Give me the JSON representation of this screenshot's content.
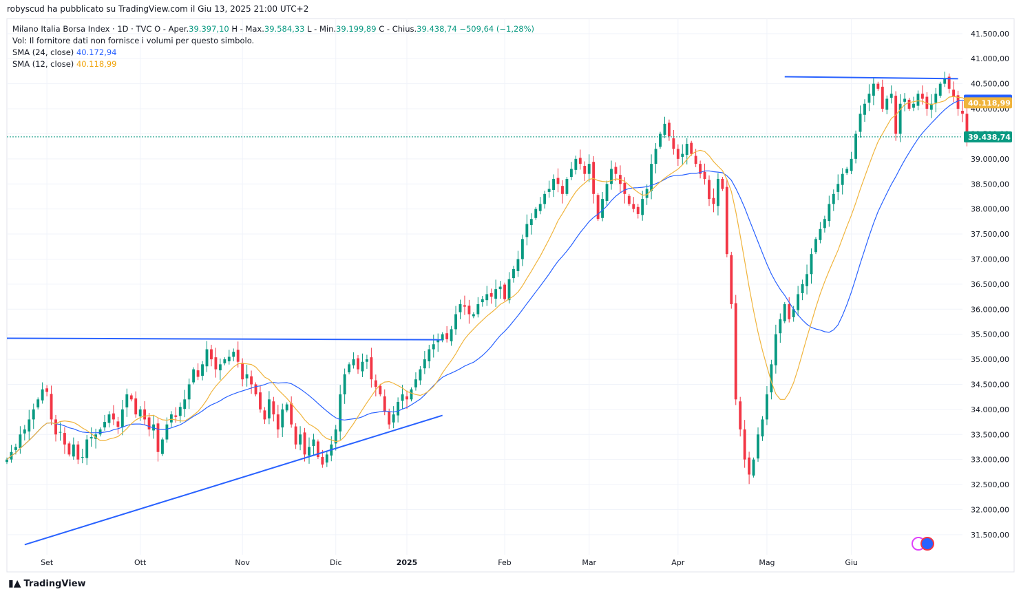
{
  "header": {
    "credit": "robyscud ha pubblicato su TradingView.com il Giu 13, 2025 21:00 UTC+2"
  },
  "legend": {
    "symbol": "Milano Italia Borsa Index · 1D · TVC",
    "open_label": "O - Aper.",
    "open_value": "39.397,10",
    "high_label": "H - Max.",
    "high_value": "39.584,33",
    "low_label": "L - Min.",
    "low_value": "39.199,89",
    "close_label": "C - Chius.",
    "close_value": "39.438,74",
    "change_value": "−509,64 (−1,28%)",
    "volume_note": "Vol: Il fornitore dati non fornisce i volumi per questo simbolo.",
    "sma24_label": "SMA (24, close)",
    "sma24_value": "40.172,94",
    "sma12_label": "SMA (12, close)",
    "sma12_value": "40.118,99"
  },
  "footer": {
    "brand": "TradingView"
  },
  "colors": {
    "up": "#089981",
    "down": "#f23645",
    "sma24": "#2962ff",
    "sma12": "#f0b43c",
    "trendline": "#2962ff",
    "last_price": "#089981",
    "grid": "#f0f3fa"
  },
  "chart_data": {
    "type": "candlestick",
    "symbol": "Milano Italia Borsa Index",
    "interval": "1D",
    "y_ticks": [
      31500,
      32000,
      32500,
      33000,
      33500,
      34000,
      34500,
      35000,
      35500,
      36000,
      36500,
      37000,
      37500,
      38000,
      38500,
      39000,
      39500,
      40000,
      40500,
      41000,
      41500
    ],
    "y_tick_labels": [
      "31.500,00",
      "32.000,00",
      "32.500,00",
      "33.000,00",
      "33.500,00",
      "34.000,00",
      "34.500,00",
      "35.000,00",
      "35.500,00",
      "36.000,00",
      "36.500,00",
      "37.000,00",
      "37.500,00",
      "38.000,00",
      "38.500,00",
      "39.000,00",
      "39.500,00",
      "40.000,00",
      "40.500,00",
      "41.000,00",
      "41.500,00"
    ],
    "ylim": [
      31100,
      41800
    ],
    "x_labels": [
      "Set",
      "Ott",
      "Nov",
      "Dic",
      "2025",
      "Feb",
      "Mar",
      "Apr",
      "Mag",
      "Giu"
    ],
    "x_label_bar_index": [
      9,
      30,
      53,
      74,
      90,
      112,
      131,
      151,
      171,
      190
    ],
    "x_range": [
      0,
      215
    ],
    "last_price": 39438.74,
    "last_price_label": "39.438,74",
    "sma24_last": 40172.94,
    "sma24_label": "40.172,94",
    "sma12_last": 40118.99,
    "sma12_label": "40.118,99",
    "closes": [
      33000,
      33150,
      33250,
      33500,
      33600,
      33800,
      34000,
      34200,
      34400,
      34350,
      33800,
      33500,
      33550,
      33300,
      33100,
      33300,
      33000,
      33050,
      33400,
      33450,
      33500,
      33600,
      33750,
      33900,
      33800,
      33650,
      34000,
      34300,
      34200,
      33900,
      34000,
      33800,
      33600,
      33700,
      33150,
      33400,
      33700,
      33900,
      33850,
      34050,
      34200,
      34500,
      34800,
      34650,
      34900,
      35200,
      35000,
      34800,
      34900,
      35000,
      35050,
      35150,
      34950,
      34600,
      34700,
      34500,
      34300,
      34000,
      33800,
      34200,
      33900,
      33600,
      34000,
      34100,
      33700,
      33300,
      33500,
      33100,
      33250,
      33400,
      33050,
      32900,
      33100,
      33300,
      33600,
      34300,
      34700,
      34900,
      35000,
      34800,
      34950,
      35000,
      34600,
      34450,
      34300,
      33950,
      33700,
      33900,
      34150,
      34300,
      34200,
      34400,
      34600,
      34800,
      35000,
      35200,
      35300,
      35400,
      35500,
      35400,
      35600,
      35900,
      36100,
      36050,
      35900,
      35900,
      36100,
      36200,
      36300,
      36250,
      36400,
      36450,
      36200,
      36600,
      36800,
      37000,
      37400,
      37700,
      37800,
      38000,
      38100,
      38300,
      38400,
      38600,
      38500,
      38300,
      38600,
      38800,
      39000,
      38900,
      38700,
      38900,
      38300,
      37800,
      38200,
      38500,
      38800,
      38700,
      38500,
      38300,
      38100,
      38000,
      37900,
      38200,
      38400,
      38900,
      39200,
      39500,
      39700,
      39450,
      39200,
      39000,
      39100,
      39300,
      39100,
      38900,
      38700,
      38600,
      38200,
      38100,
      38600,
      38400,
      37100,
      36100,
      34200,
      33600,
      33000,
      32700,
      33000,
      33500,
      33800,
      34300,
      34900,
      35500,
      35800,
      36100,
      35800,
      36000,
      36300,
      36500,
      36700,
      37100,
      37400,
      37600,
      37800,
      38100,
      38300,
      38500,
      38700,
      38800,
      39000,
      39500,
      39900,
      40100,
      40300,
      40500,
      40400,
      40000,
      40200,
      40300,
      39500,
      40100,
      40200,
      40000,
      40100,
      40300,
      40200,
      40000,
      40100,
      40300,
      40500,
      40600,
      40400,
      40250,
      40000,
      39900,
      39440
    ],
    "trendlines": [
      {
        "from": [
          0,
          35420
        ],
        "to": [
          98,
          35390
        ]
      },
      {
        "from": [
          4,
          31300
        ],
        "to": [
          98,
          33880
        ]
      },
      {
        "from": [
          175,
          40640
        ],
        "to": [
          214,
          40600
        ]
      }
    ]
  }
}
